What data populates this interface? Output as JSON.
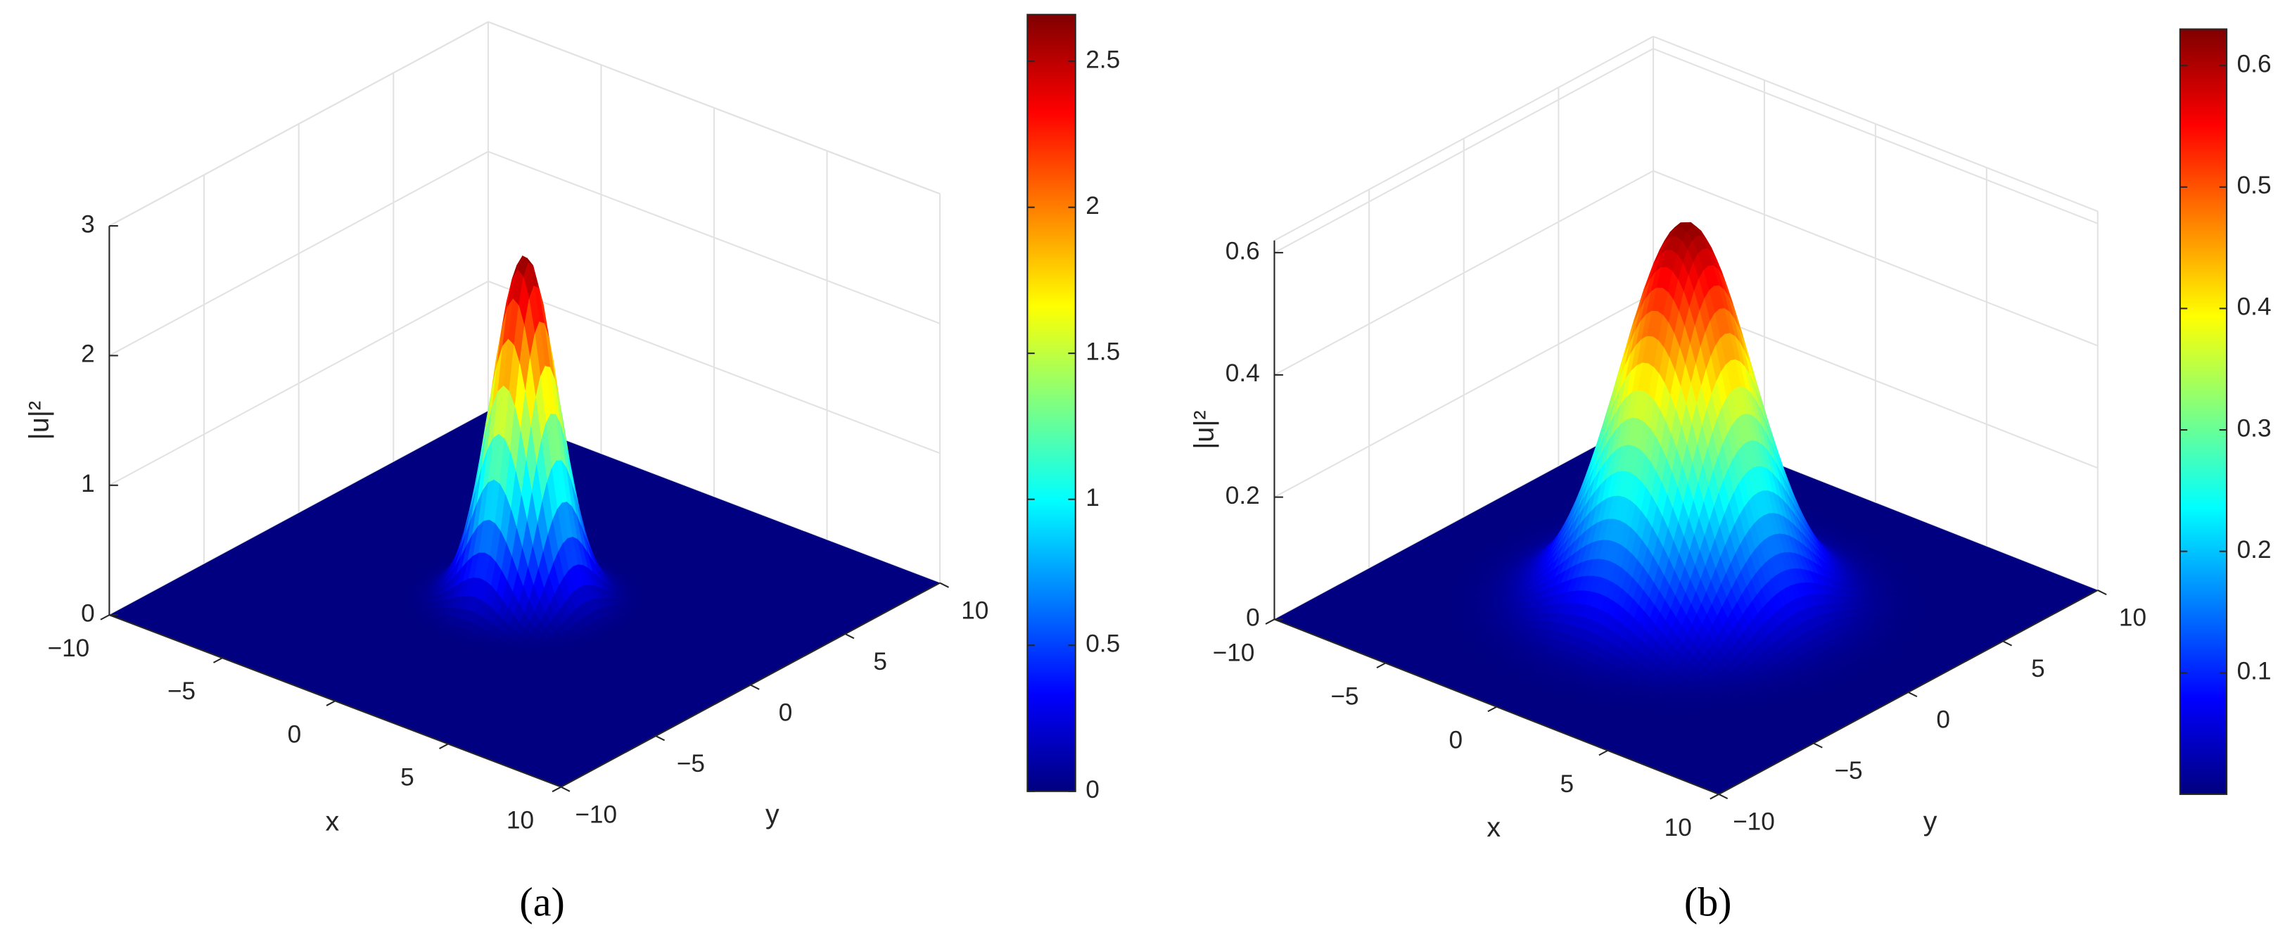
{
  "chart_data": [
    {
      "type": "surface",
      "xlabel": "x",
      "ylabel": "y",
      "zlabel": "|u|²",
      "caption": "(a)",
      "xlim": [
        -10,
        10
      ],
      "xticks": [
        {
          "value": -10,
          "label": "−10"
        },
        {
          "value": -5,
          "label": "−5"
        },
        0,
        5,
        10
      ],
      "ylim": [
        -10,
        10
      ],
      "yticks": [
        {
          "value": -10,
          "label": "−10"
        },
        {
          "value": -5,
          "label": "−5"
        },
        0,
        5,
        10
      ],
      "zlim": [
        0,
        3
      ],
      "zticks": [
        0,
        1,
        2,
        3
      ],
      "surface": {
        "peak": 2.65,
        "width": 1.6
      },
      "colormap": "jet",
      "clim": [
        0,
        2.66
      ],
      "cticks": [
        0,
        0.5,
        1,
        1.5,
        2,
        2.5
      ]
    },
    {
      "type": "surface",
      "xlabel": "x",
      "ylabel": "y",
      "zlabel": "|u|²",
      "caption": "(b)",
      "xlim": [
        -10,
        10
      ],
      "xticks": [
        {
          "value": -10,
          "label": "−10"
        },
        {
          "value": -5,
          "label": "−5"
        },
        0,
        5,
        10
      ],
      "ylim": [
        -10,
        10
      ],
      "yticks": [
        {
          "value": -10,
          "label": "−10"
        },
        {
          "value": -5,
          "label": "−5"
        },
        0,
        5,
        10
      ],
      "zlim": [
        0,
        0.62
      ],
      "zticks": [
        0,
        0.2,
        0.4,
        0.6
      ],
      "surface": {
        "peak": 0.625,
        "width": 3.25
      },
      "colormap": "jet",
      "clim": [
        0,
        0.63
      ],
      "cticks": [
        0.1,
        0.2,
        0.3,
        0.4,
        0.5,
        0.6
      ]
    }
  ]
}
